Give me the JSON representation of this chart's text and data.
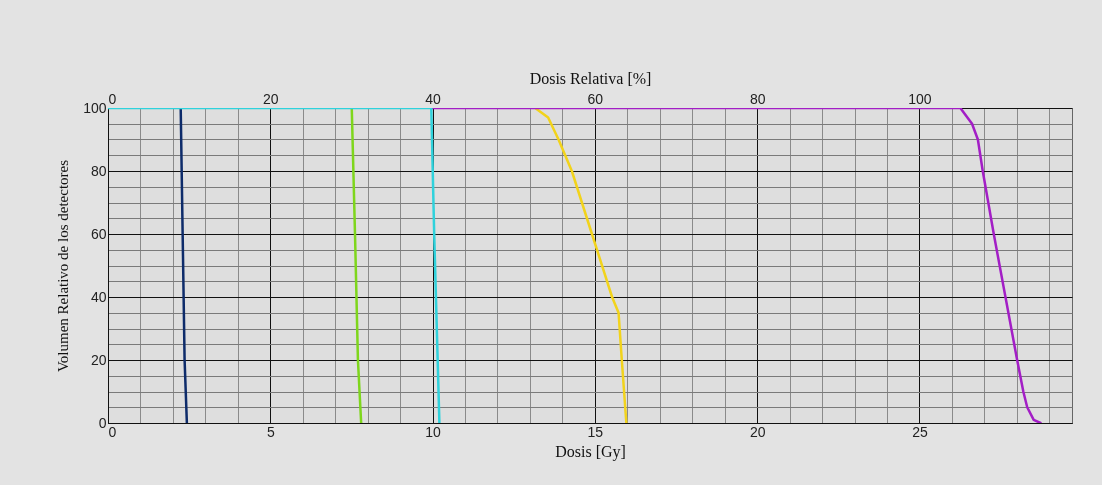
{
  "chart_data": {
    "type": "line",
    "xlabel": "Dosis [Gy]",
    "x2label": "Dosis Relativa [%]",
    "ylabel": "Volumen Relativo de los detectores",
    "xlim": [
      0,
      29.7
    ],
    "xticks": [
      0,
      {
        "value": 1,
        "label": null
      },
      {
        "value": 2,
        "label": null
      },
      {
        "value": 3,
        "label": null
      },
      {
        "value": 4,
        "label": null
      },
      5,
      {
        "value": 6,
        "label": null
      },
      {
        "value": 7,
        "label": null
      },
      {
        "value": 8,
        "label": null
      },
      {
        "value": 9,
        "label": null
      },
      10,
      {
        "value": 11,
        "label": null
      },
      {
        "value": 12,
        "label": null
      },
      {
        "value": 13,
        "label": null
      },
      {
        "value": 14,
        "label": null
      },
      15,
      {
        "value": 16,
        "label": null
      },
      {
        "value": 17,
        "label": null
      },
      {
        "value": 18,
        "label": null
      },
      {
        "value": 19,
        "label": null
      },
      20,
      {
        "value": 21,
        "label": null
      },
      {
        "value": 22,
        "label": null
      },
      {
        "value": 23,
        "label": null
      },
      {
        "value": 24,
        "label": null
      },
      25,
      {
        "value": 26,
        "label": null
      },
      {
        "value": 27,
        "label": null
      },
      {
        "value": 28,
        "label": null
      },
      {
        "value": 29,
        "label": null
      }
    ],
    "x2lim": [
      0,
      118.8
    ],
    "x2ticks": [
      0,
      20,
      40,
      60,
      80,
      100
    ],
    "ylim": [
      0,
      100
    ],
    "yticks": [
      0,
      {
        "value": 5,
        "label": null
      },
      {
        "value": 10,
        "label": null
      },
      {
        "value": 15,
        "label": null
      },
      20,
      {
        "value": 25,
        "label": null
      },
      {
        "value": 30,
        "label": null
      },
      {
        "value": 35,
        "label": null
      },
      40,
      {
        "value": 45,
        "label": null
      },
      {
        "value": 50,
        "label": null
      },
      {
        "value": 55,
        "label": null
      },
      60,
      {
        "value": 65,
        "label": null
      },
      {
        "value": 70,
        "label": null
      },
      {
        "value": 75,
        "label": null
      },
      80,
      {
        "value": 85,
        "label": null
      },
      {
        "value": 90,
        "label": null
      },
      {
        "value": 95,
        "label": null
      },
      100
    ],
    "grid": true,
    "legend": false,
    "marker": "none",
    "line_style": "solid",
    "series": [
      {
        "color": "#f2d31b",
        "x": [
          13.16,
          13.56,
          13.88,
          14.29,
          14.91,
          15.53,
          15.73,
          15.83,
          15.97
        ],
        "values": [
          100,
          97,
          90,
          80,
          60,
          40,
          35,
          20,
          0
        ]
      },
      {
        "color": "#a31ec6",
        "x": [
          9.96,
          26.26,
          26.62,
          26.8,
          26.95,
          27.29,
          27.65,
          28.01,
          28.2,
          28.32,
          28.52,
          28.73
        ],
        "values": [
          100,
          100,
          95,
          90,
          80,
          60,
          40,
          20,
          10,
          5,
          1,
          0
        ]
      },
      {
        "color": "#0d2b6a",
        "x": [
          2.24,
          2.3,
          2.36,
          2.43
        ],
        "values": [
          100,
          60,
          20,
          0
        ]
      },
      {
        "color": "#7ed61c",
        "x": [
          7.51,
          7.61,
          7.7,
          7.8
        ],
        "values": [
          100,
          60,
          20,
          0
        ]
      },
      {
        "color": "#2fd2dc",
        "x": [
          0,
          9.96,
          10.05,
          10.21
        ],
        "values": [
          100,
          100,
          60,
          0
        ]
      }
    ]
  }
}
